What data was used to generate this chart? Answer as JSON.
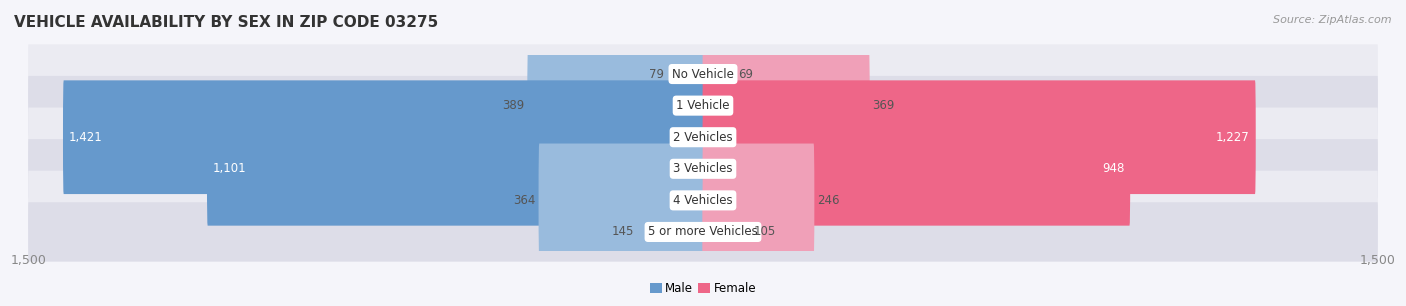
{
  "title": "VEHICLE AVAILABILITY BY SEX IN ZIP CODE 03275",
  "source": "Source: ZipAtlas.com",
  "categories": [
    "No Vehicle",
    "1 Vehicle",
    "2 Vehicles",
    "3 Vehicles",
    "4 Vehicles",
    "5 or more Vehicles"
  ],
  "male_values": [
    79,
    389,
    1421,
    1101,
    364,
    145
  ],
  "female_values": [
    69,
    369,
    1227,
    948,
    246,
    105
  ],
  "male_color_large": "#6699cc",
  "male_color_small": "#99bbdd",
  "female_color_large": "#ee6688",
  "female_color_small": "#f0a0b8",
  "row_bg_color_odd": "#ebebf2",
  "row_bg_color_even": "#dddde8",
  "xlim": 1500,
  "legend_labels": [
    "Male",
    "Female"
  ],
  "title_fontsize": 11,
  "source_fontsize": 8,
  "label_fontsize": 8.5,
  "category_fontsize": 8.5,
  "axis_fontsize": 9,
  "large_threshold": 400
}
